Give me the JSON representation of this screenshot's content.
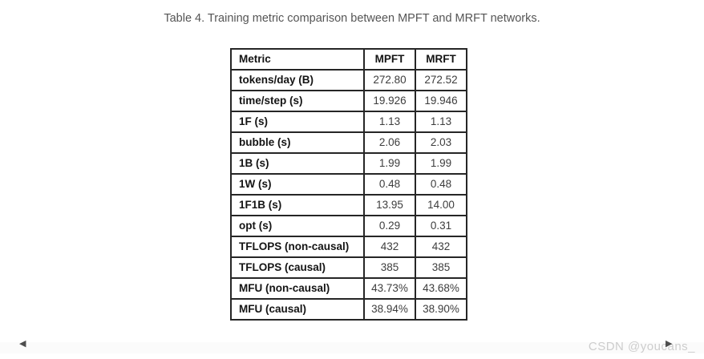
{
  "page": {
    "title": "Table 4. Training metric comparison between MPFT and MRFT networks.",
    "watermark": "CSDN @youcans_"
  },
  "icons": {
    "prev_arrow": "◀",
    "next_arrow": "▶"
  },
  "colors": {
    "table_border": "#262626",
    "header_text": "#141414",
    "value_text": "#3d3d3d",
    "caption_text": "#555555",
    "watermark_text": "#cdcdcd",
    "nav_arrow": "#4d4d4d",
    "bottom_strip_bg": "#fbfbfb"
  },
  "table": {
    "columns": [
      "Metric",
      "MPFT",
      "MRFT"
    ],
    "rows": [
      {
        "metric": "tokens/day (B)",
        "mpft": "272.80",
        "mrft": "272.52"
      },
      {
        "metric": "time/step (s)",
        "mpft": "19.926",
        "mrft": "19.946"
      },
      {
        "metric": "1F (s)",
        "mpft": "1.13",
        "mrft": "1.13"
      },
      {
        "metric": "bubble (s)",
        "mpft": "2.06",
        "mrft": "2.03"
      },
      {
        "metric": "1B (s)",
        "mpft": "1.99",
        "mrft": "1.99"
      },
      {
        "metric": "1W (s)",
        "mpft": "0.48",
        "mrft": "0.48"
      },
      {
        "metric": "1F1B (s)",
        "mpft": "13.95",
        "mrft": "14.00"
      },
      {
        "metric": "opt (s)",
        "mpft": "0.29",
        "mrft": "0.31"
      },
      {
        "metric": "TFLOPS (non-causal)",
        "mpft": "432",
        "mrft": "432"
      },
      {
        "metric": "TFLOPS (causal)",
        "mpft": "385",
        "mrft": "385"
      },
      {
        "metric": "MFU (non-causal)",
        "mpft": "43.73%",
        "mrft": "43.68%"
      },
      {
        "metric": "MFU (causal)",
        "mpft": "38.94%",
        "mrft": "38.90%"
      }
    ]
  }
}
